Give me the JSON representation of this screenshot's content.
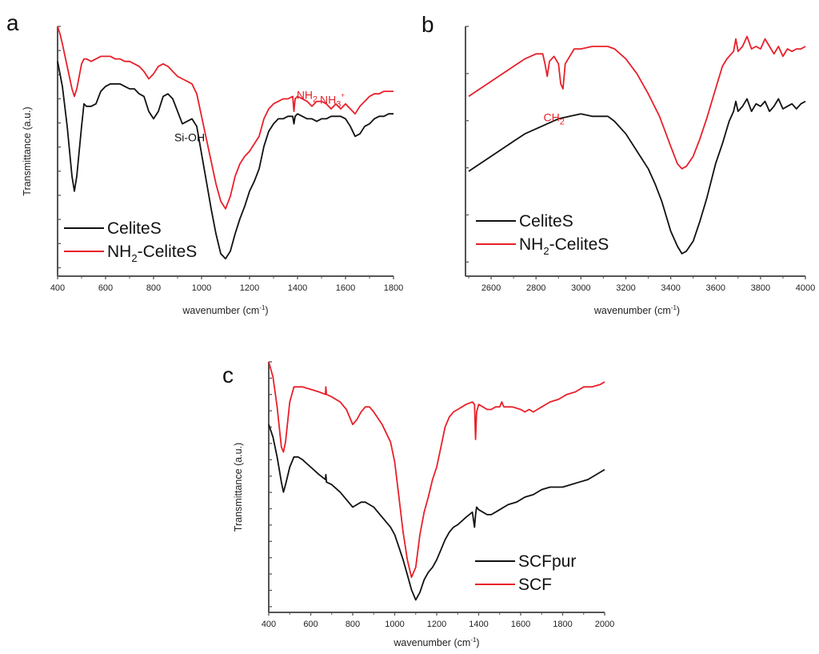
{
  "colors": {
    "black_series": "#111111",
    "red_series": "#e8202a",
    "axis": "#555555"
  },
  "chart_data": [
    {
      "id": "a",
      "type": "line",
      "panel_label": "a",
      "title": "",
      "xlabel": "wavenumber (cm",
      "xlabel_sup": "-1",
      "xlabel_close": ")",
      "ylabel": "Transmittance (a.u.)",
      "xlim": [
        400,
        1800
      ],
      "ylim": [
        0,
        100
      ],
      "xticks": [
        400,
        600,
        800,
        1000,
        1200,
        1400,
        1600,
        1800
      ],
      "xticks_minor": [
        500,
        700,
        900,
        1100,
        1300,
        1500,
        1700
      ],
      "yticks_count": 11,
      "ytick_labels_visible": false,
      "grid": false,
      "legend_position": "bottom-left",
      "annotations": [
        {
          "text": "Si-OH",
          "x": 950,
          "y": 54,
          "color": "black"
        },
        {
          "text": "NH",
          "sub": "2",
          "x": 1440,
          "y": 71,
          "color": "red"
        },
        {
          "text": "NH",
          "sub": "3",
          "sup": "+",
          "x": 1545,
          "y": 69,
          "color": "red"
        }
      ],
      "series": [
        {
          "name": "CelitesS_display",
          "label": "CeliteS",
          "label_sub": "",
          "label_rest": "",
          "color_key": "black_series",
          "x": [
            400,
            420,
            440,
            460,
            470,
            480,
            500,
            510,
            520,
            540,
            560,
            580,
            600,
            620,
            640,
            660,
            680,
            700,
            720,
            740,
            760,
            780,
            800,
            820,
            840,
            860,
            880,
            900,
            920,
            940,
            960,
            980,
            1000,
            1020,
            1040,
            1060,
            1080,
            1100,
            1120,
            1140,
            1160,
            1180,
            1200,
            1220,
            1240,
            1260,
            1280,
            1300,
            1320,
            1340,
            1360,
            1380,
            1385,
            1390,
            1400,
            1420,
            1440,
            1460,
            1480,
            1500,
            1520,
            1540,
            1560,
            1580,
            1600,
            1620,
            1640,
            1660,
            1680,
            1700,
            1720,
            1740,
            1760,
            1780,
            1800
          ],
          "y": [
            86,
            76,
            60,
            40,
            34,
            40,
            60,
            69,
            68,
            68,
            69,
            74,
            76,
            77,
            77,
            77,
            76,
            75,
            75,
            73,
            72,
            66,
            63,
            66,
            72,
            73,
            71,
            66,
            61,
            62,
            63,
            60,
            49,
            38,
            27,
            17,
            9,
            7,
            10,
            17,
            23,
            28,
            34,
            38,
            43,
            52,
            58,
            61,
            63,
            63,
            64,
            64,
            61,
            64,
            65,
            64,
            63,
            63,
            62,
            63,
            63,
            64,
            64,
            64,
            63,
            60,
            56,
            57,
            60,
            61,
            63,
            64,
            64,
            65,
            65
          ]
        },
        {
          "name": "NH2-CeliteS",
          "label": "NH",
          "label_sub": "2",
          "label_rest": "-CeliteS",
          "color_key": "red_series",
          "x": [
            400,
            410,
            420,
            440,
            460,
            470,
            480,
            500,
            510,
            520,
            540,
            560,
            580,
            600,
            620,
            640,
            660,
            680,
            700,
            720,
            740,
            760,
            780,
            800,
            820,
            840,
            860,
            880,
            900,
            920,
            940,
            960,
            980,
            1000,
            1020,
            1040,
            1060,
            1080,
            1100,
            1120,
            1140,
            1160,
            1180,
            1200,
            1220,
            1240,
            1260,
            1280,
            1300,
            1320,
            1340,
            1360,
            1380,
            1385,
            1390,
            1400,
            1420,
            1440,
            1460,
            1480,
            1500,
            1520,
            1540,
            1560,
            1580,
            1600,
            1620,
            1640,
            1660,
            1680,
            1700,
            1720,
            1740,
            1760,
            1780,
            1800
          ],
          "y": [
            100,
            97,
            93,
            84,
            75,
            72,
            75,
            85,
            87,
            87,
            86,
            87,
            88,
            88,
            88,
            87,
            87,
            86,
            86,
            85,
            84,
            82,
            79,
            81,
            84,
            85,
            84,
            82,
            80,
            79,
            78,
            77,
            73,
            64,
            55,
            46,
            37,
            30,
            27,
            32,
            40,
            45,
            48,
            50,
            53,
            56,
            63,
            67,
            69,
            70,
            71,
            71,
            72,
            66,
            71,
            72,
            71,
            70,
            68,
            70,
            70,
            69,
            67,
            69,
            67,
            69,
            67,
            65,
            68,
            70,
            72,
            73,
            73,
            74,
            74,
            74
          ]
        }
      ]
    },
    {
      "id": "b",
      "type": "line",
      "panel_label": "b",
      "title": "",
      "xlabel": "wavenumber (cm",
      "xlabel_sup": "-1",
      "xlabel_close": ")",
      "ylabel": "",
      "xlim": [
        2500,
        4000
      ],
      "ylim": [
        0,
        100
      ],
      "xticks": [
        2600,
        2800,
        3000,
        3200,
        3400,
        3600,
        3800,
        4000
      ],
      "xticks_minor": [
        2500,
        2700,
        2900,
        3100,
        3300,
        3500,
        3700,
        3900
      ],
      "yticks_count": 6,
      "ytick_labels_visible": false,
      "grid": false,
      "legend_position": "bottom-left",
      "annotations": [
        {
          "text": "CH",
          "sub": "2",
          "x": 2880,
          "y": 62,
          "color": "red"
        }
      ],
      "series": [
        {
          "name": "CeliteS",
          "label": "CeliteS",
          "label_sub": "",
          "label_rest": "",
          "color_key": "black_series",
          "x": [
            2500,
            2550,
            2600,
            2650,
            2700,
            2750,
            2800,
            2850,
            2900,
            2950,
            3000,
            3050,
            3100,
            3120,
            3150,
            3200,
            3250,
            3300,
            3330,
            3360,
            3400,
            3430,
            3450,
            3470,
            3500,
            3530,
            3560,
            3600,
            3630,
            3660,
            3680,
            3690,
            3700,
            3720,
            3740,
            3760,
            3780,
            3800,
            3820,
            3840,
            3860,
            3880,
            3900,
            3920,
            3940,
            3960,
            3980,
            4000
          ],
          "y": [
            42,
            45,
            48,
            51,
            54,
            57,
            59,
            61,
            63,
            64,
            65,
            64,
            64,
            64,
            62,
            57,
            50,
            43,
            37,
            30,
            18,
            12,
            9,
            10,
            14,
            22,
            31,
            45,
            53,
            62,
            66,
            70,
            66,
            68,
            71,
            66,
            69,
            68,
            70,
            66,
            68,
            71,
            67,
            68,
            69,
            67,
            69,
            70
          ]
        },
        {
          "name": "NH2-CeliteS",
          "label": "NH",
          "label_sub": "2",
          "label_rest": "-CeliteS",
          "color_key": "red_series",
          "x": [
            2500,
            2550,
            2600,
            2650,
            2700,
            2750,
            2800,
            2830,
            2840,
            2850,
            2860,
            2880,
            2900,
            2910,
            2920,
            2930,
            2950,
            2970,
            3000,
            3050,
            3100,
            3120,
            3150,
            3200,
            3250,
            3300,
            3350,
            3400,
            3430,
            3450,
            3470,
            3500,
            3530,
            3560,
            3600,
            3630,
            3650,
            3680,
            3690,
            3700,
            3720,
            3740,
            3760,
            3780,
            3800,
            3820,
            3840,
            3860,
            3880,
            3900,
            3920,
            3940,
            3960,
            3980,
            4000
          ],
          "y": [
            72,
            75,
            78,
            81,
            84,
            87,
            89,
            89,
            85,
            80,
            86,
            88,
            85,
            77,
            75,
            85,
            88,
            91,
            91,
            92,
            92,
            92,
            91,
            87,
            81,
            73,
            64,
            52,
            45,
            43,
            44,
            48,
            55,
            63,
            75,
            84,
            87,
            90,
            95,
            90,
            92,
            96,
            91,
            92,
            91,
            95,
            92,
            89,
            92,
            88,
            91,
            90,
            91,
            91,
            92
          ]
        }
      ]
    },
    {
      "id": "c",
      "type": "line",
      "panel_label": "c",
      "title": "",
      "xlabel": "wavenumber (cm",
      "xlabel_sup": "-1",
      "xlabel_close": ")",
      "ylabel": "Transmittance (a.u.)",
      "xlim": [
        400,
        2000
      ],
      "ylim": [
        0,
        100
      ],
      "xticks": [
        400,
        600,
        800,
        1000,
        1200,
        1400,
        1600,
        1800,
        2000
      ],
      "xticks_minor": [
        500,
        700,
        900,
        1100,
        1300,
        1500,
        1700,
        1900
      ],
      "yticks_count": 16,
      "ytick_labels_visible": false,
      "grid": false,
      "legend_position": "bottom-right",
      "annotations": [],
      "series": [
        {
          "name": "SCFpur",
          "label": "SCFpur",
          "label_sub": "",
          "label_rest": "",
          "color_key": "black_series",
          "x": [
            400,
            420,
            440,
            460,
            470,
            480,
            500,
            520,
            540,
            560,
            600,
            640,
            670,
            672,
            675,
            700,
            740,
            770,
            790,
            800,
            820,
            840,
            860,
            880,
            900,
            940,
            980,
            1000,
            1020,
            1040,
            1060,
            1080,
            1100,
            1120,
            1140,
            1160,
            1180,
            1200,
            1220,
            1240,
            1260,
            1280,
            1300,
            1340,
            1370,
            1380,
            1385,
            1390,
            1400,
            1420,
            1440,
            1460,
            1480,
            1500,
            1540,
            1580,
            1620,
            1660,
            1700,
            1740,
            1760,
            1800,
            1840,
            1880,
            1920,
            1960,
            2000
          ],
          "y": [
            75,
            70,
            62,
            52,
            48,
            51,
            58,
            62,
            62,
            61,
            58,
            55,
            53,
            55,
            52,
            51,
            48,
            45,
            43,
            42,
            43,
            44,
            44,
            43,
            42,
            38,
            34,
            31,
            26,
            21,
            15,
            9,
            5,
            8,
            13,
            16,
            18,
            21,
            25,
            29,
            32,
            34,
            35,
            38,
            40,
            34,
            39,
            42,
            41,
            40,
            39,
            39,
            40,
            41,
            43,
            44,
            46,
            47,
            49,
            50,
            50,
            50,
            51,
            52,
            53,
            55,
            57
          ]
        },
        {
          "name": "SCF",
          "label": "SCF",
          "label_sub": "",
          "label_rest": "",
          "color_key": "red_series",
          "x": [
            400,
            410,
            420,
            440,
            460,
            470,
            480,
            500,
            520,
            540,
            560,
            600,
            640,
            670,
            672,
            675,
            700,
            740,
            770,
            790,
            800,
            820,
            840,
            860,
            870,
            880,
            900,
            940,
            980,
            1000,
            1020,
            1040,
            1060,
            1080,
            1100,
            1120,
            1140,
            1160,
            1180,
            1200,
            1220,
            1240,
            1260,
            1280,
            1300,
            1340,
            1370,
            1380,
            1385,
            1390,
            1400,
            1420,
            1440,
            1460,
            1480,
            1500,
            1510,
            1520,
            1540,
            1560,
            1600,
            1620,
            1640,
            1660,
            1680,
            1700,
            1740,
            1780,
            1820,
            1860,
            1900,
            1940,
            1980,
            2000
          ],
          "y": [
            100,
            97,
            94,
            82,
            66,
            64,
            68,
            84,
            90,
            90,
            90,
            89,
            88,
            87,
            90,
            87,
            86,
            84,
            81,
            77,
            75,
            77,
            80,
            82,
            82,
            82,
            80,
            75,
            68,
            60,
            46,
            32,
            21,
            14,
            18,
            31,
            40,
            46,
            53,
            58,
            66,
            74,
            78,
            80,
            81,
            83,
            84,
            83,
            69,
            80,
            83,
            82,
            81,
            81,
            82,
            82,
            84,
            82,
            82,
            82,
            81,
            80,
            81,
            80,
            81,
            82,
            84,
            85,
            87,
            88,
            90,
            90,
            91,
            92
          ]
        }
      ]
    }
  ]
}
